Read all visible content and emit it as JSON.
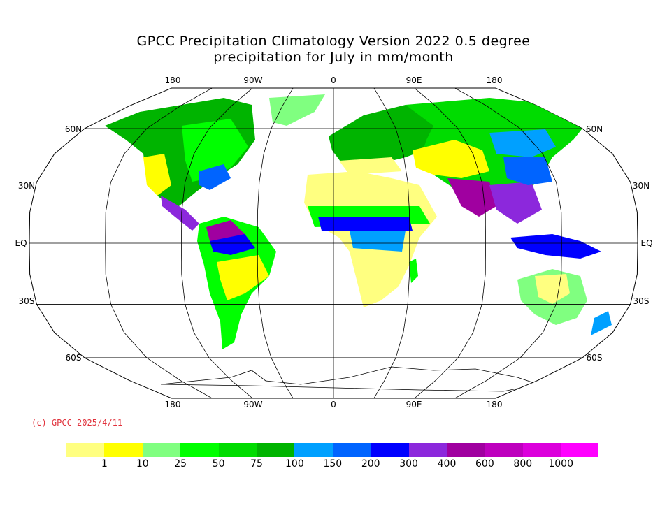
{
  "title": {
    "line1": "GPCC Precipitation Climatology Version 2022 0.5 degree",
    "line2": "precipitation for July  in mm/month"
  },
  "map": {
    "projection": "Robinson",
    "lon_labels_top": [
      "180",
      "90W",
      "0",
      "90E",
      "180"
    ],
    "lon_labels_bottom": [
      "180",
      "90W",
      "0",
      "90E",
      "180"
    ],
    "lat_labels_left": [
      "60N",
      "30N",
      "EQ",
      "30S",
      "60S"
    ],
    "lat_labels_right": [
      "60N",
      "30N",
      "EQ",
      "30S",
      "60S"
    ]
  },
  "copyright": "(c) GPCC 2025/4/11",
  "colorbar": {
    "colors": [
      "#ffff80",
      "#ffff00",
      "#80ff80",
      "#00ff00",
      "#00dc00",
      "#00b400",
      "#00a0ff",
      "#0064ff",
      "#0000ff",
      "#8c28dc",
      "#a000a0",
      "#be00be",
      "#dc00dc",
      "#ff00ff"
    ],
    "labels": [
      "1",
      "10",
      "25",
      "50",
      "75",
      "100",
      "150",
      "200",
      "300",
      "400",
      "600",
      "800",
      "1000"
    ]
  },
  "legend_colors": {
    "dry": "#ffff80",
    "moderate": "#00ff00",
    "wet": "#0064ff",
    "very_wet": "#a000a0"
  }
}
